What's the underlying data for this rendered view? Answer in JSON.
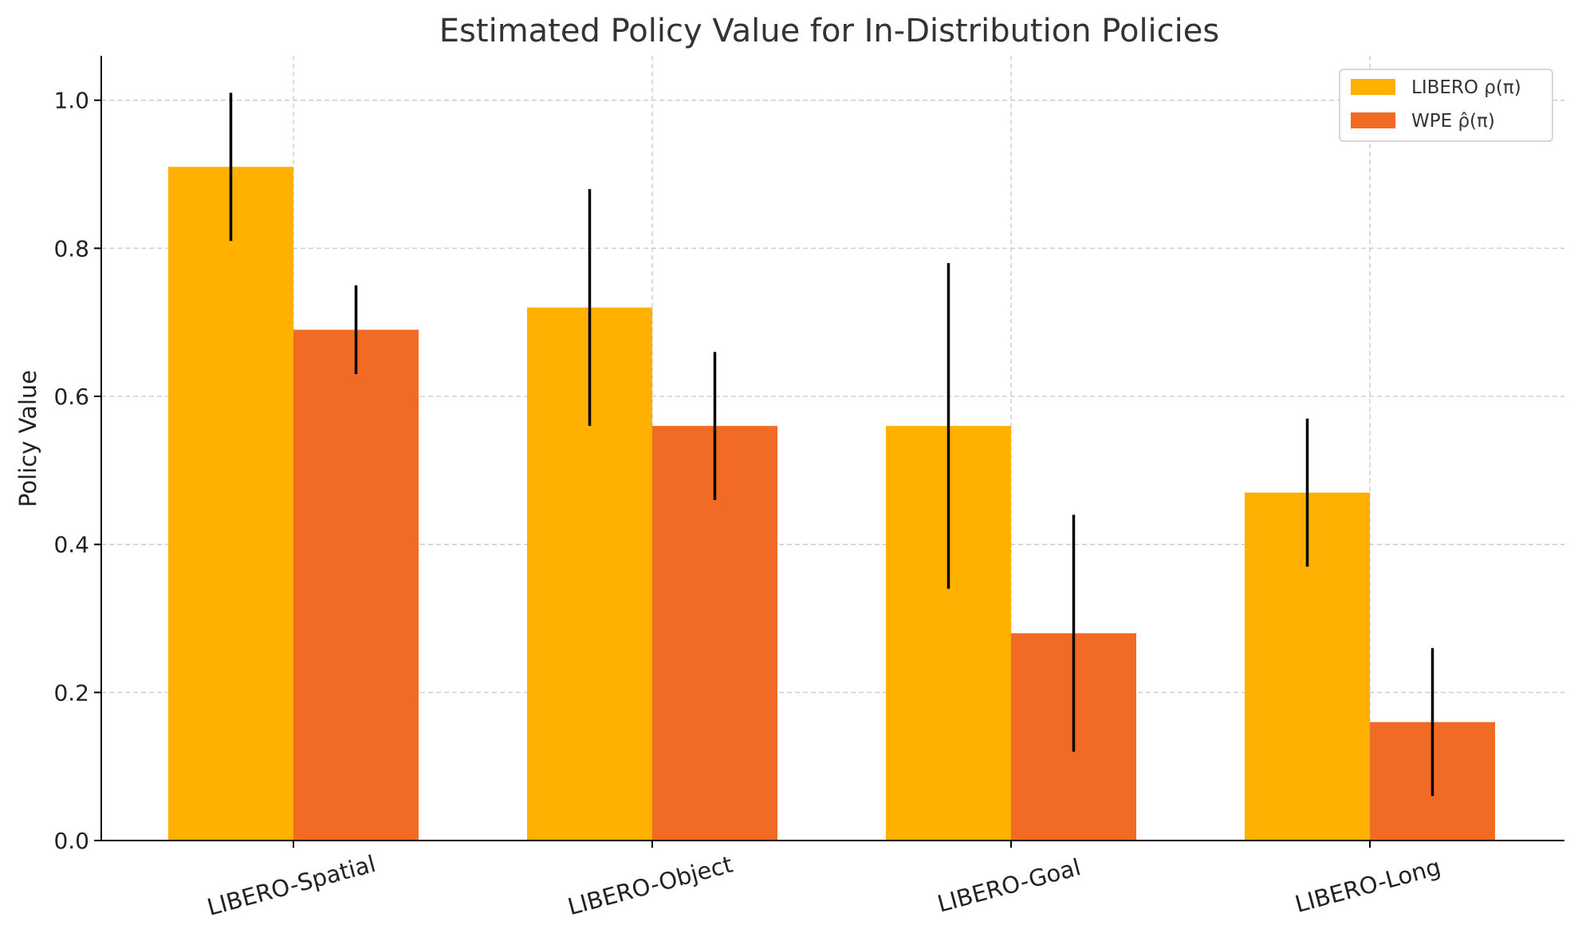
{
  "chart_data": {
    "type": "bar",
    "title": "Estimated Policy Value for In-Distribution Policies",
    "xlabel": "",
    "ylabel": "Policy Value",
    "ylim": [
      0,
      1.06
    ],
    "yticks": [
      "0.0",
      "0.2",
      "0.4",
      "0.6",
      "0.8",
      "1.0"
    ],
    "categories": [
      "LIBERO-Spatial",
      "LIBERO-Object",
      "LIBERO-Goal",
      "LIBERO-Long"
    ],
    "series": [
      {
        "name": "LIBERO ρ(π)",
        "color": "#FFB000",
        "values": [
          0.91,
          0.72,
          0.56,
          0.47
        ],
        "errors": [
          0.1,
          0.16,
          0.22,
          0.1
        ]
      },
      {
        "name": "WPE ρ̂(π)",
        "color": "#F26B24",
        "values": [
          0.69,
          0.56,
          0.28,
          0.16
        ],
        "errors": [
          0.06,
          0.1,
          0.16,
          0.1
        ]
      }
    ],
    "grid": true,
    "legend_position": "top-right"
  }
}
